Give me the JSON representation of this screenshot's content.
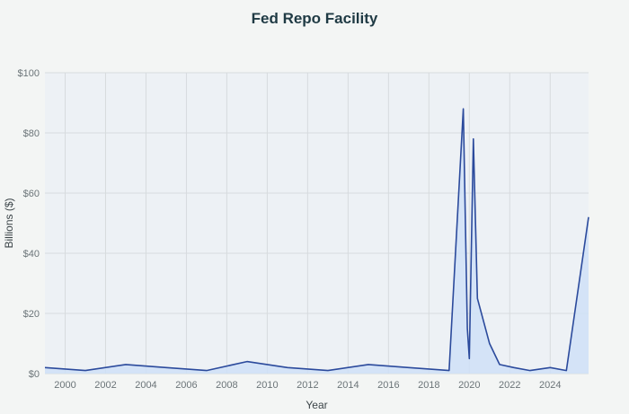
{
  "chart_data": {
    "type": "area",
    "title": "Fed Repo Facility",
    "xlabel": "Year",
    "ylabel": "Billions ($)",
    "xlim": [
      1999,
      2025.9
    ],
    "ylim": [
      0,
      100
    ],
    "x_ticks": [
      2000,
      2002,
      2004,
      2006,
      2008,
      2010,
      2012,
      2014,
      2016,
      2018,
      2020,
      2022,
      2024
    ],
    "y_ticks": [
      {
        "value": 0,
        "label": "$0"
      },
      {
        "value": 20,
        "label": "$20"
      },
      {
        "value": 40,
        "label": "$40"
      },
      {
        "value": 60,
        "label": "$60"
      },
      {
        "value": 80,
        "label": "$80"
      },
      {
        "value": 100,
        "label": "$100"
      }
    ],
    "grid": true,
    "legend": "none",
    "colors": {
      "line": "#2b4a9c",
      "fill": "#cfe0f7",
      "plot_background": "#edf1f5",
      "grid": "#d7dbde"
    },
    "series": [
      {
        "x": [
          1999,
          2001,
          2003,
          2005,
          2007,
          2009,
          2011,
          2013,
          2015,
          2017,
          2019,
          2019.7,
          2019.9,
          2020.0,
          2020.2,
          2020.4,
          2021.0,
          2021.5,
          2022.2,
          2023,
          2024,
          2024.8,
          2025.9
        ],
        "y": [
          2,
          1,
          3,
          2,
          1,
          4,
          2,
          1,
          3,
          2,
          1,
          88,
          15,
          5,
          78,
          25,
          10,
          3,
          2,
          1,
          2,
          1,
          52
        ]
      }
    ]
  }
}
